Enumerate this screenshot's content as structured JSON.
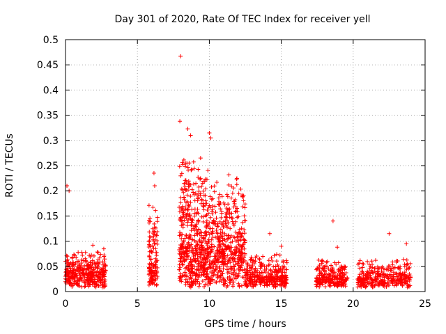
{
  "chart_data": {
    "type": "scatter",
    "title": "Day 301 of 2020, Rate Of TEC Index for receiver yell",
    "xlabel": "GPS time / hours",
    "ylabel": "ROTI / TECUs",
    "xlim": [
      0,
      25
    ],
    "ylim": [
      0,
      0.5
    ],
    "x_ticks": [
      0,
      5,
      10,
      15,
      20,
      25
    ],
    "x_tick_labels": [
      "0",
      "5",
      "10",
      "15",
      "20",
      "25"
    ],
    "y_ticks": [
      0,
      0.05,
      0.1,
      0.15,
      0.2,
      0.25,
      0.3,
      0.35,
      0.4,
      0.45,
      0.5
    ],
    "y_tick_labels": [
      "0",
      "0.05",
      "0.1",
      "0.15",
      "0.2",
      "0.25",
      "0.3",
      "0.35",
      "0.4",
      "0.45",
      "0.5"
    ],
    "grid": true,
    "marker": "+",
    "series_color": "#ff0000",
    "clusters": [
      {
        "x_range": [
          0.0,
          2.8
        ],
        "base": 0.03,
        "spread": 0.05,
        "n": 380
      },
      {
        "x_range": [
          5.8,
          6.4
        ],
        "base": 0.04,
        "spread": 0.13,
        "n": 140
      },
      {
        "x_range": [
          7.9,
          10.0
        ],
        "base": 0.08,
        "spread": 0.18,
        "n": 520
      },
      {
        "x_range": [
          10.0,
          12.5
        ],
        "base": 0.08,
        "spread": 0.15,
        "n": 480
      },
      {
        "x_range": [
          12.5,
          15.4
        ],
        "base": 0.02,
        "spread": 0.05,
        "n": 320
      },
      {
        "x_range": [
          17.4,
          19.6
        ],
        "base": 0.02,
        "spread": 0.04,
        "n": 240
      },
      {
        "x_range": [
          20.3,
          24.0
        ],
        "base": 0.02,
        "spread": 0.04,
        "n": 330
      }
    ],
    "peaks": [
      {
        "x": 8.0,
        "y": 0.467
      },
      {
        "x": 7.95,
        "y": 0.338
      },
      {
        "x": 8.5,
        "y": 0.323
      },
      {
        "x": 8.7,
        "y": 0.31
      },
      {
        "x": 10.0,
        "y": 0.315
      },
      {
        "x": 10.1,
        "y": 0.305
      },
      {
        "x": 0.1,
        "y": 0.21
      },
      {
        "x": 0.25,
        "y": 0.2
      },
      {
        "x": 6.15,
        "y": 0.235
      },
      {
        "x": 6.2,
        "y": 0.21
      },
      {
        "x": 18.6,
        "y": 0.14
      },
      {
        "x": 14.2,
        "y": 0.115
      },
      {
        "x": 22.5,
        "y": 0.115
      },
      {
        "x": 23.7,
        "y": 0.095
      },
      {
        "x": 15.0,
        "y": 0.09
      },
      {
        "x": 1.9,
        "y": 0.092
      },
      {
        "x": 18.9,
        "y": 0.088
      }
    ]
  }
}
